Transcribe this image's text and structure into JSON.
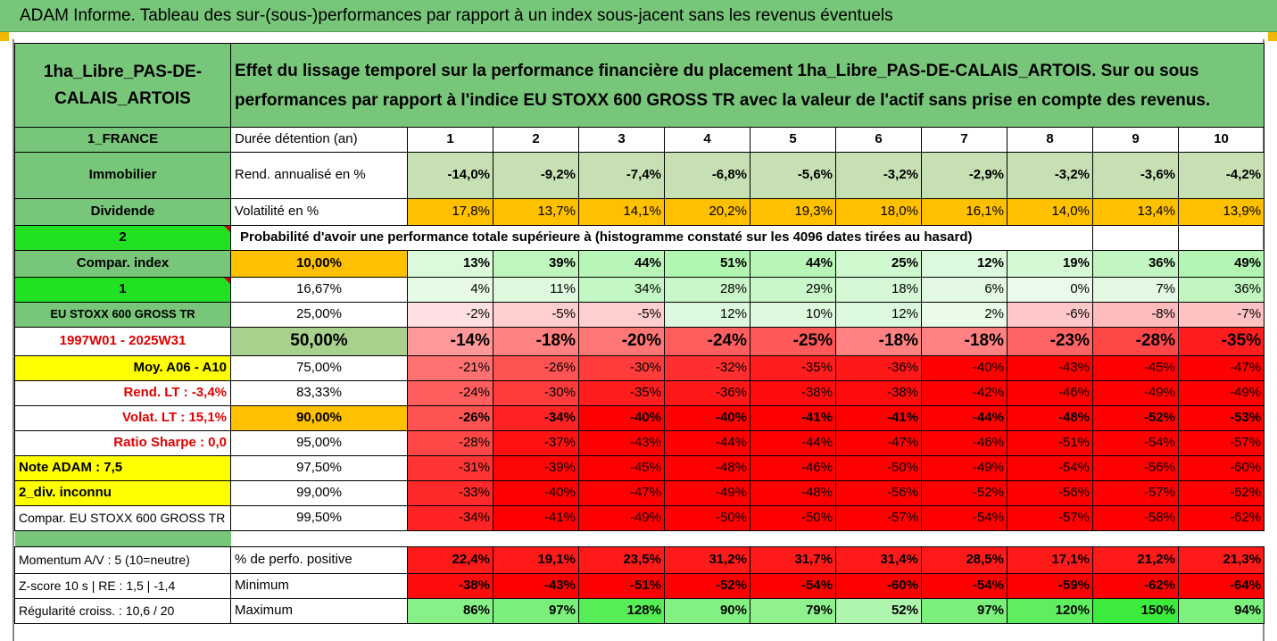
{
  "report_title": "ADAM Informe. Tableau des sur-(sous-)performances par rapport à un index sous-jacent sans les revenus éventuels",
  "header": {
    "fund": "1ha_Libre_PAS-DE-CALAIS_ARTOIS",
    "description": "Effet du lissage temporel sur la performance financière du placement 1ha_Libre_PAS-DE-CALAIS_ARTOIS. Sur ou sous performances par rapport à l'indice EU STOXX 600 GROSS TR avec la valeur de l'actif sans prise en compte des revenus."
  },
  "left_labels": {
    "country": "1_FRANCE",
    "asset_class": "Immobilier",
    "dividend": "Dividende",
    "two": "2",
    "compar_index": "Compar. index",
    "one": "1",
    "index_name": "EU STOXX 600 GROSS TR",
    "period": "1997W01 - 2025W31",
    "moy": "Moy. A06 - A10",
    "rend_lt": "Rend. LT :   -3,4%",
    "volat_lt": "Volat. LT :   15,1%",
    "sharpe": "Ratio Sharpe :   0,0",
    "note": "Note ADAM : 7,5",
    "div": "2_div. inconnu",
    "compar_full": "Compar. EU STOXX 600 GROSS TR",
    "momentum": "Momentum A/V : 5 (10=neutre)",
    "zscore": "Z-score 10 s  | RE : 1,5  | -1,4",
    "regularite": "Régularité croiss. : 10,6 / 20"
  },
  "row_labels": {
    "duree": "Durée détention (an)",
    "rend": "Rend. annualisé en %",
    "volat": "Volatilité en %",
    "proba": "Probabilité d'avoir une performance totale supérieure à (histogramme constaté sur les 4096 dates tirées au hasard)",
    "perf_pos": "% de perfo. positive",
    "minimum": "Minimum",
    "maximum": "Maximum"
  },
  "years": [
    "1",
    "2",
    "3",
    "4",
    "5",
    "6",
    "7",
    "8",
    "9",
    "10"
  ],
  "rend": [
    "-14,0%",
    "-9,2%",
    "-7,4%",
    "-6,8%",
    "-5,6%",
    "-3,2%",
    "-2,9%",
    "-3,2%",
    "-3,6%",
    "-4,2%"
  ],
  "volat": [
    "17,8%",
    "13,7%",
    "14,1%",
    "20,2%",
    "19,3%",
    "18,0%",
    "16,1%",
    "14,0%",
    "13,4%",
    "13,9%"
  ],
  "percentiles": [
    {
      "p": "10,00%",
      "v": [
        "13%",
        "39%",
        "44%",
        "51%",
        "44%",
        "25%",
        "12%",
        "19%",
        "36%",
        "49%"
      ]
    },
    {
      "p": "16,67%",
      "v": [
        "4%",
        "11%",
        "34%",
        "28%",
        "29%",
        "18%",
        "6%",
        "0%",
        "7%",
        "36%"
      ]
    },
    {
      "p": "25,00%",
      "v": [
        "-2%",
        "-5%",
        "-5%",
        "12%",
        "10%",
        "12%",
        "2%",
        "-6%",
        "-8%",
        "-7%"
      ]
    },
    {
      "p": "50,00%",
      "v": [
        "-14%",
        "-18%",
        "-20%",
        "-24%",
        "-25%",
        "-18%",
        "-18%",
        "-23%",
        "-28%",
        "-35%"
      ]
    },
    {
      "p": "75,00%",
      "v": [
        "-21%",
        "-26%",
        "-30%",
        "-32%",
        "-35%",
        "-36%",
        "-40%",
        "-43%",
        "-45%",
        "-47%"
      ]
    },
    {
      "p": "83,33%",
      "v": [
        "-24%",
        "-30%",
        "-35%",
        "-36%",
        "-38%",
        "-38%",
        "-42%",
        "-46%",
        "-49%",
        "-49%"
      ]
    },
    {
      "p": "90,00%",
      "v": [
        "-26%",
        "-34%",
        "-40%",
        "-40%",
        "-41%",
        "-41%",
        "-44%",
        "-48%",
        "-52%",
        "-53%"
      ]
    },
    {
      "p": "95,00%",
      "v": [
        "-28%",
        "-37%",
        "-43%",
        "-44%",
        "-44%",
        "-47%",
        "-46%",
        "-51%",
        "-54%",
        "-57%"
      ]
    },
    {
      "p": "97,50%",
      "v": [
        "-31%",
        "-39%",
        "-45%",
        "-48%",
        "-46%",
        "-50%",
        "-49%",
        "-54%",
        "-56%",
        "-60%"
      ]
    },
    {
      "p": "99,00%",
      "v": [
        "-33%",
        "-40%",
        "-47%",
        "-49%",
        "-48%",
        "-56%",
        "-52%",
        "-56%",
        "-57%",
        "-62%"
      ]
    },
    {
      "p": "99,50%",
      "v": [
        "-34%",
        "-41%",
        "-49%",
        "-50%",
        "-50%",
        "-57%",
        "-54%",
        "-57%",
        "-58%",
        "-62%"
      ]
    }
  ],
  "perf_pos": [
    "22,4%",
    "19,1%",
    "23,5%",
    "31,2%",
    "31,7%",
    "31,4%",
    "28,5%",
    "17,1%",
    "21,2%",
    "21,3%"
  ],
  "minimum": [
    "-38%",
    "-43%",
    "-51%",
    "-52%",
    "-54%",
    "-60%",
    "-54%",
    "-59%",
    "-62%",
    "-64%"
  ],
  "maximum": [
    "86%",
    "97%",
    "128%",
    "90%",
    "79%",
    "52%",
    "97%",
    "120%",
    "150%",
    "94%"
  ],
  "colors": {
    "header_green": "#78c67a",
    "bright_green": "#22e022",
    "yellow": "#ffff00",
    "orange": "#ffc000",
    "red": "#ff0000"
  }
}
